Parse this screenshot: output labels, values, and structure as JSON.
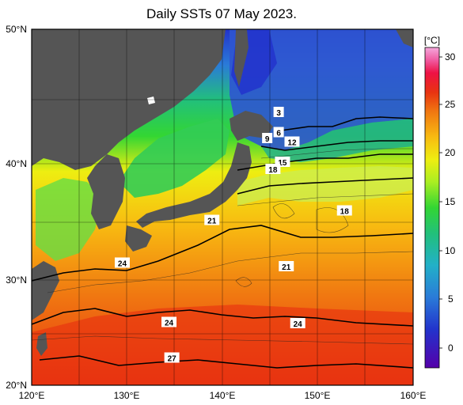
{
  "title": "Daily SSTs 07 May 2023.",
  "colorbar": {
    "unit": "[°C]",
    "ticks": [
      "30",
      "25",
      "20",
      "15",
      "10",
      "5",
      "0"
    ],
    "range": [
      -2,
      32
    ],
    "colors": [
      "#5500aa",
      "#2233cc",
      "#2a7bd8",
      "#22b0c8",
      "#22c07a",
      "#33d633",
      "#aaee22",
      "#eeee11",
      "#f8bb11",
      "#f07711",
      "#e83311",
      "#ee1144",
      "#f05aa0",
      "#f5a8dc"
    ]
  },
  "map": {
    "lat_labels": [
      "50°N",
      "40°N",
      "30°N",
      "20°N"
    ],
    "lon_labels": [
      "120°E",
      "130°E",
      "140°E",
      "150°E",
      "160°E"
    ],
    "land_color": "#555555",
    "isotherm_labels": [
      {
        "text": "3",
        "lon": 145.9,
        "lat": 43.0
      },
      {
        "text": "6",
        "lon": 145.9,
        "lat": 41.3
      },
      {
        "text": "9",
        "lon": 144.7,
        "lat": 40.8
      },
      {
        "text": "12",
        "lon": 147.3,
        "lat": 40.5
      },
      {
        "text": "15",
        "lon": 146.3,
        "lat": 38.8
      },
      {
        "text": "18",
        "lon": 145.3,
        "lat": 38.2
      },
      {
        "text": "18",
        "lon": 152.8,
        "lat": 34.7
      },
      {
        "text": "21",
        "lon": 138.9,
        "lat": 33.9
      },
      {
        "text": "21",
        "lon": 146.7,
        "lat": 30.0
      },
      {
        "text": "24",
        "lon": 129.5,
        "lat": 30.3
      },
      {
        "text": "24",
        "lon": 134.4,
        "lat": 25.3
      },
      {
        "text": "24",
        "lon": 147.9,
        "lat": 25.2
      },
      {
        "text": "27",
        "lon": 134.7,
        "lat": 22.3
      }
    ]
  }
}
